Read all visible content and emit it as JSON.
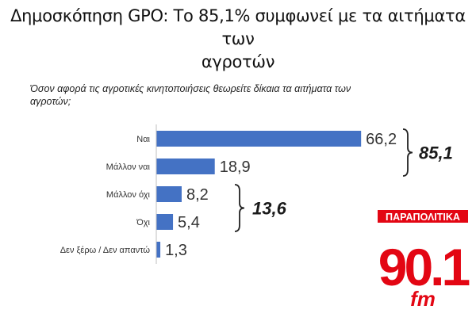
{
  "headline": {
    "line1": "Δημοσκόπηση GPO: Το 85,1% συμφωνεί με τα αιτήματα των",
    "line2": "αγροτών"
  },
  "question": {
    "line1": "Όσον αφορά τις αγροτικές κινητοποιήσεις θεωρείτε δίκαια τα αιτήματα των",
    "line2": "αγροτών;"
  },
  "chart_data": {
    "type": "bar",
    "orientation": "horizontal",
    "categories": [
      "Ναι",
      "Μάλλον ναι",
      "Μάλλον όχι",
      "Όχι",
      "Δεν ξέρω / Δεν απαντώ"
    ],
    "values": [
      66.2,
      18.9,
      8.2,
      5.4,
      1.3
    ],
    "value_labels": [
      "66,2",
      "18,9",
      "8,2",
      "5,4",
      "1,3"
    ],
    "groups": [
      {
        "label": "85,1",
        "categories": [
          "Ναι",
          "Μάλλον ναι"
        ]
      },
      {
        "label": "13,6",
        "categories": [
          "Μάλλον όχι",
          "Όχι"
        ]
      }
    ],
    "xlim": [
      0,
      70
    ],
    "bar_color": "#4472c4",
    "grid": false,
    "legend": "none"
  },
  "logo": {
    "top_text": "ΠΑΡΑΠΟΛΙΤΙΚΑ",
    "main_text": "90.1",
    "sub_text": "fm",
    "color": "#e30613"
  }
}
